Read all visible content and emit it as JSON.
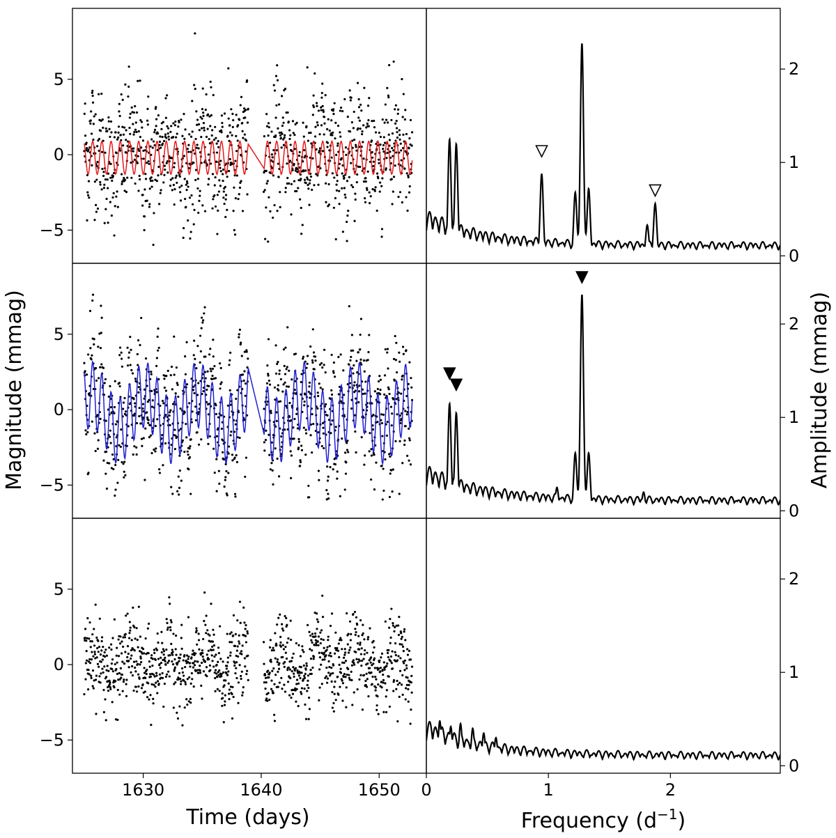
{
  "figure": {
    "left_ylabel": "Magnitude (mmag)",
    "right_ylabel": "Amplitude (mmag)",
    "left_xlabel": "Time (days)",
    "right_xlabel_main": "Frequency (d",
    "right_xlabel_sup": "−1",
    "right_xlabel_close": ")"
  },
  "chart_data": [
    {
      "type": "scatter",
      "panel": "light-curve",
      "row": 1,
      "xlim": [
        1624,
        1654
      ],
      "ylim": [
        -7.2,
        9.7
      ],
      "xticks": [
        1630,
        1640,
        1650
      ],
      "xtick_labels": [
        "1630",
        "1640",
        "1650"
      ],
      "yticks": [
        -5,
        0,
        5
      ],
      "ytick_labels": [
        "−5",
        "0",
        "5"
      ],
      "scatter_color": "#000000",
      "model_color": "#e41a1c",
      "data_range_x": [
        1625.0,
        1652.8
      ],
      "gap_x": [
        1638.9,
        1640.2
      ],
      "amplitude_range_y": [
        -5,
        7
      ],
      "model": {
        "period_d": 0.78,
        "amplitude": 1.1
      }
    },
    {
      "type": "scatter",
      "panel": "light-curve",
      "row": 2,
      "xlim": [
        1624,
        1654
      ],
      "ylim": [
        -7.2,
        9.7
      ],
      "xticks": [
        1630,
        1640,
        1650
      ],
      "xtick_labels": [
        "1630",
        "1640",
        "1650"
      ],
      "yticks": [
        -5,
        0,
        5
      ],
      "ytick_labels": [
        "−5",
        "0",
        "5"
      ],
      "scatter_color": "#000000",
      "model_color": "#1f1fd0",
      "data_range_x": [
        1625.0,
        1652.8
      ],
      "gap_x": [
        1638.9,
        1640.2
      ],
      "amplitude_range_y": [
        -5,
        6
      ],
      "model": {
        "period_d": 0.78,
        "amplitude": 2.2,
        "beat_period_d": 4.5,
        "beat_amplitude": 1.2
      }
    },
    {
      "type": "scatter",
      "panel": "light-curve",
      "row": 3,
      "xlim": [
        1624,
        1654
      ],
      "ylim": [
        -7.2,
        9.7
      ],
      "xticks": [
        1630,
        1640,
        1650
      ],
      "xtick_labels": [
        "1630",
        "1640",
        "1650"
      ],
      "yticks": [
        -5,
        0,
        5
      ],
      "ytick_labels": [
        "−5",
        "0",
        "5"
      ],
      "scatter_color": "#000000",
      "data_range_x": [
        1625.0,
        1652.8
      ],
      "gap_x": [
        1638.9,
        1640.2
      ],
      "amplitude_range_y": [
        -4.5,
        4
      ]
    },
    {
      "type": "line",
      "panel": "periodogram",
      "row": 1,
      "xlim": [
        0,
        2.9
      ],
      "ylim": [
        -0.08,
        2.65
      ],
      "xticks": [
        0,
        1,
        2
      ],
      "xtick_labels": [
        "0",
        "1",
        "2"
      ],
      "yticks": [
        0,
        1,
        2
      ],
      "ytick_labels": [
        "0",
        "1",
        "2"
      ],
      "line_color": "#000000",
      "peaks": [
        {
          "freq": 0.19,
          "amp": 1.25
        },
        {
          "freq": 0.245,
          "amp": 1.2
        },
        {
          "freq": 0.945,
          "amp": 0.88
        },
        {
          "freq": 1.22,
          "amp": 0.68
        },
        {
          "freq": 1.275,
          "amp": 2.28
        },
        {
          "freq": 1.33,
          "amp": 0.72
        },
        {
          "freq": 1.875,
          "amp": 0.56
        },
        {
          "freq": 1.81,
          "amp": 0.33
        }
      ],
      "markers": [
        {
          "freq": 0.945,
          "amp": 1.12,
          "filled": false
        },
        {
          "freq": 1.875,
          "amp": 0.7,
          "filled": false
        }
      ]
    },
    {
      "type": "line",
      "panel": "periodogram",
      "row": 2,
      "xlim": [
        0,
        2.9
      ],
      "ylim": [
        -0.08,
        2.65
      ],
      "xticks": [
        0,
        1,
        2
      ],
      "xtick_labels": [
        "0",
        "1",
        "2"
      ],
      "yticks": [
        0,
        1,
        2
      ],
      "ytick_labels": [
        "0",
        "1",
        "2"
      ],
      "line_color": "#000000",
      "peaks": [
        {
          "freq": 0.19,
          "amp": 1.15
        },
        {
          "freq": 0.245,
          "amp": 1.05
        },
        {
          "freq": 1.22,
          "amp": 0.62
        },
        {
          "freq": 1.275,
          "amp": 2.32
        },
        {
          "freq": 1.33,
          "amp": 0.62
        },
        {
          "freq": 1.07,
          "amp": 0.25
        },
        {
          "freq": 1.78,
          "amp": 0.2
        }
      ],
      "markers": [
        {
          "freq": 1.275,
          "amp": 2.5,
          "filled": true
        },
        {
          "freq": 0.19,
          "amp": 1.47,
          "filled": true
        },
        {
          "freq": 0.245,
          "amp": 1.35,
          "filled": true
        }
      ]
    },
    {
      "type": "line",
      "panel": "periodogram",
      "row": 3,
      "xlim": [
        0,
        2.9
      ],
      "ylim": [
        -0.08,
        2.65
      ],
      "xticks": [
        0,
        1,
        2
      ],
      "xtick_labels": [
        "0",
        "1",
        "2"
      ],
      "yticks": [
        0,
        1,
        2
      ],
      "ytick_labels": [
        "0",
        "1",
        "2"
      ],
      "line_color": "#000000",
      "peaks": [
        {
          "freq": 0.11,
          "amp": 0.48
        },
        {
          "freq": 0.2,
          "amp": 0.42
        },
        {
          "freq": 0.28,
          "amp": 0.45
        },
        {
          "freq": 0.38,
          "amp": 0.4
        },
        {
          "freq": 0.47,
          "amp": 0.35
        },
        {
          "freq": 0.57,
          "amp": 0.3
        },
        {
          "freq": 0.8,
          "amp": 0.2
        },
        {
          "freq": 1.32,
          "amp": 0.14
        }
      ],
      "markers": []
    }
  ]
}
